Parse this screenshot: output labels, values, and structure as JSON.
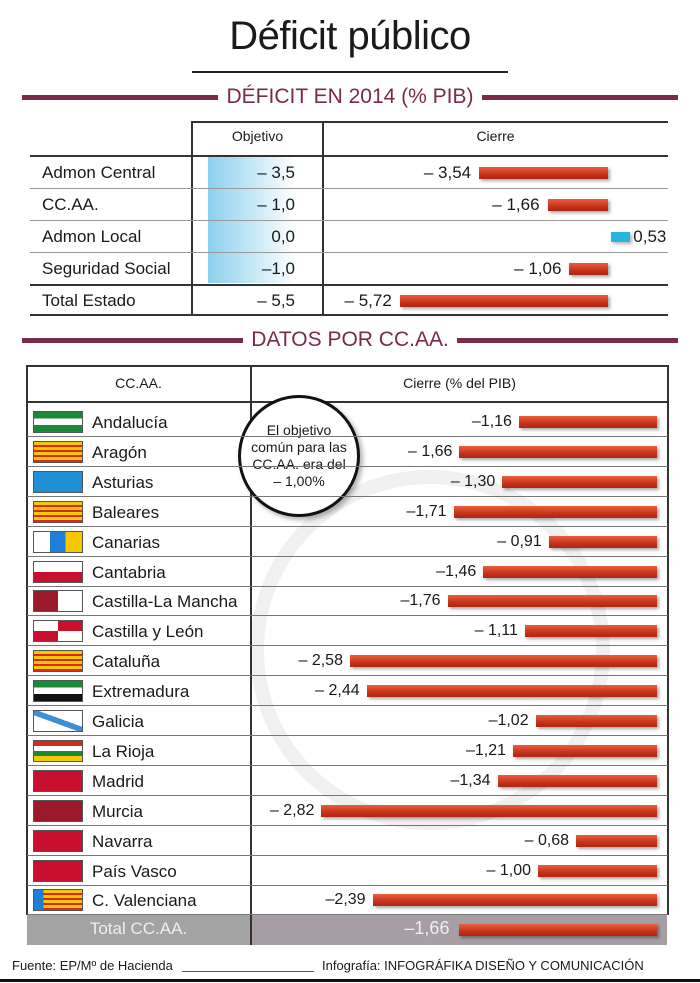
{
  "title": "Déficit público",
  "section1": "DÉFICIT EN 2014 (% PIB)",
  "section2": "DATOS POR CC.AA.",
  "colors": {
    "accent": "#7a2a4a",
    "bar": "#c8321a",
    "positive_bar": "#29b4e0"
  },
  "chart_data": [
    {
      "type": "table",
      "headers": [
        "",
        "Objetivo",
        "Cierre"
      ],
      "rows": [
        {
          "label": "Admon Central",
          "objetivo": "– 3,5",
          "cierre_text": "– 3,54",
          "cierre": -3.54
        },
        {
          "label": "CC.AA.",
          "objetivo": "– 1,0",
          "cierre_text": "– 1,66",
          "cierre": -1.66
        },
        {
          "label": "Admon Local",
          "objetivo": "0,0",
          "cierre_text": "0,53",
          "cierre": 0.53
        },
        {
          "label": "Seguridad Social",
          "objetivo": "–1,0",
          "cierre_text": "– 1,06",
          "cierre": -1.06
        }
      ],
      "total": {
        "label": "Total Estado",
        "objetivo": "– 5,5",
        "cierre_text": "– 5,72",
        "cierre": -5.72
      }
    },
    {
      "type": "bar",
      "headers": [
        "CC.AA.",
        "Cierre (% del PIB)"
      ],
      "note": "El objetivo común para las CC.AA. era del – 1,00%",
      "rows": [
        {
          "label": "Andalucía",
          "text": "–1,16",
          "value": -1.16,
          "flag": "andalucia"
        },
        {
          "label": "Aragón",
          "text": "– 1,66",
          "value": -1.66,
          "flag": "aragon"
        },
        {
          "label": "Asturias",
          "text": "– 1,30",
          "value": -1.3,
          "flag": "asturias"
        },
        {
          "label": "Baleares",
          "text": "–1,71",
          "value": -1.71,
          "flag": "baleares"
        },
        {
          "label": "Canarias",
          "text": "– 0,91",
          "value": -0.91,
          "flag": "canarias"
        },
        {
          "label": "Cantabria",
          "text": "–1,46",
          "value": -1.46,
          "flag": "cantabria"
        },
        {
          "label": "Castilla-La Mancha",
          "text": "–1,76",
          "value": -1.76,
          "flag": "clm"
        },
        {
          "label": "Castilla y León",
          "text": "– 1,11",
          "value": -1.11,
          "flag": "cyl"
        },
        {
          "label": "Cataluña",
          "text": "– 2,58",
          "value": -2.58,
          "flag": "cataluna"
        },
        {
          "label": "Extremadura",
          "text": "– 2,44",
          "value": -2.44,
          "flag": "extremadura"
        },
        {
          "label": "Galicia",
          "text": "–1,02",
          "value": -1.02,
          "flag": "galicia"
        },
        {
          "label": "La Rioja",
          "text": "–1,21",
          "value": -1.21,
          "flag": "rioja"
        },
        {
          "label": "Madrid",
          "text": "–1,34",
          "value": -1.34,
          "flag": "madrid"
        },
        {
          "label": "Murcia",
          "text": "– 2,82",
          "value": -2.82,
          "flag": "murcia"
        },
        {
          "label": "Navarra",
          "text": "– 0,68",
          "value": -0.68,
          "flag": "navarra"
        },
        {
          "label": "País Vasco",
          "text": "– 1,00",
          "value": -1.0,
          "flag": "paisvasco"
        },
        {
          "label": "C. Valenciana",
          "text": "–2,39",
          "value": -2.39,
          "flag": "valencia"
        }
      ],
      "total": {
        "label": "Total CC.AA.",
        "text": "–1,66",
        "value": -1.66
      }
    }
  ],
  "footer": {
    "source": "Fuente: EP/Mº de Hacienda",
    "credit": "Infografía: INFOGRÁFIKA DISEÑO Y COMUNICACIÓN"
  }
}
